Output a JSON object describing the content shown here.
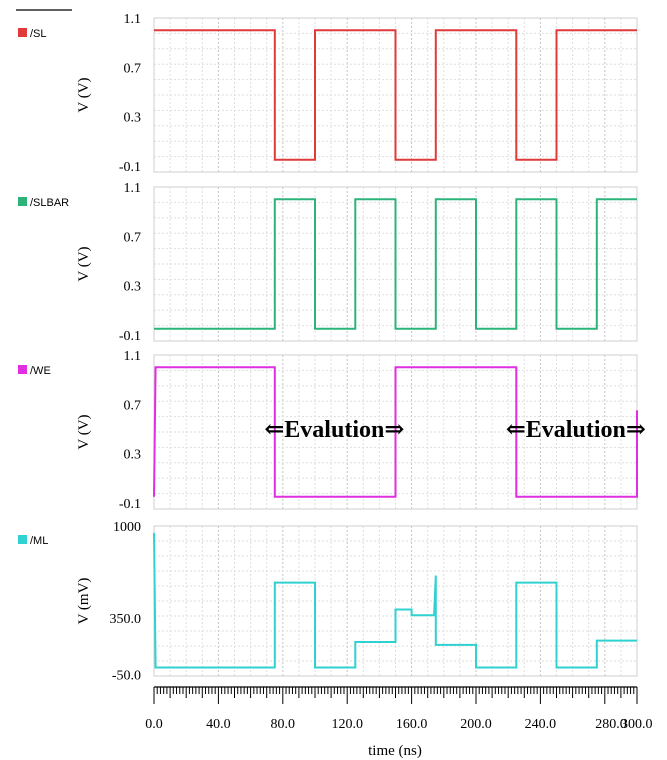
{
  "chart_data": {
    "type": "line",
    "xlabel": "time (ns)",
    "xlim": [
      0,
      300
    ],
    "x_ticks": [
      "0.0",
      "40.0",
      "80.0",
      "120.0",
      "160.0",
      "200.0",
      "240.0",
      "280.0",
      "300.0"
    ],
    "grid": true,
    "panels": [
      {
        "name": "/SL",
        "color": "#e03a3a",
        "ylabel": "V (V)",
        "ylim": [
          -0.15,
          1.1
        ],
        "y_ticks": [
          "1.1",
          "0.7",
          "0.3",
          "-0.1"
        ],
        "points": [
          [
            0,
            1.0
          ],
          [
            75,
            1.0
          ],
          [
            75,
            -0.05
          ],
          [
            100,
            -0.05
          ],
          [
            100,
            1.0
          ],
          [
            150,
            1.0
          ],
          [
            150,
            -0.05
          ],
          [
            175,
            -0.05
          ],
          [
            175,
            1.0
          ],
          [
            225,
            1.0
          ],
          [
            225,
            -0.05
          ],
          [
            250,
            -0.05
          ],
          [
            250,
            1.0
          ],
          [
            300,
            1.0
          ]
        ]
      },
      {
        "name": "/SLBAR",
        "color": "#2db37a",
        "ylabel": "V (V)",
        "ylim": [
          -0.15,
          1.1
        ],
        "y_ticks": [
          "1.1",
          "0.7",
          "0.3",
          "-0.1"
        ],
        "points": [
          [
            0,
            -0.05
          ],
          [
            75,
            -0.05
          ],
          [
            75,
            1.0
          ],
          [
            100,
            1.0
          ],
          [
            100,
            -0.05
          ],
          [
            125,
            -0.05
          ],
          [
            125,
            1.0
          ],
          [
            150,
            1.0
          ],
          [
            150,
            -0.05
          ],
          [
            175,
            -0.05
          ],
          [
            175,
            1.0
          ],
          [
            200,
            1.0
          ],
          [
            200,
            -0.05
          ],
          [
            225,
            -0.05
          ],
          [
            225,
            1.0
          ],
          [
            250,
            1.0
          ],
          [
            250,
            -0.05
          ],
          [
            275,
            -0.05
          ],
          [
            275,
            1.0
          ],
          [
            300,
            1.0
          ]
        ]
      },
      {
        "name": "/WE",
        "color": "#e02ee0",
        "ylabel": "V (V)",
        "ylim": [
          -0.15,
          1.1
        ],
        "y_ticks": [
          "1.1",
          "0.7",
          "0.3",
          "-0.1"
        ],
        "points": [
          [
            0,
            -0.05
          ],
          [
            1,
            1.0
          ],
          [
            75,
            1.0
          ],
          [
            75,
            -0.05
          ],
          [
            150,
            -0.05
          ],
          [
            150,
            1.0
          ],
          [
            225,
            1.0
          ],
          [
            225,
            -0.05
          ],
          [
            300,
            -0.05
          ],
          [
            300,
            0.65
          ]
        ],
        "annotations": [
          {
            "text": "⇐Evalution⇒",
            "x": 112,
            "y": 0.5
          },
          {
            "text": "⇐Evalution⇒",
            "x": 262,
            "y": 0.5
          }
        ]
      },
      {
        "name": "/ML",
        "color": "#2fd1d1",
        "ylabel": "V (mV)",
        "ylim": [
          -60,
          1000
        ],
        "y_ticks": [
          "1000",
          "350.0",
          "-50.0"
        ],
        "points": [
          [
            0,
            950
          ],
          [
            1,
            0
          ],
          [
            75,
            0
          ],
          [
            75,
            600
          ],
          [
            100,
            600
          ],
          [
            100,
            0
          ],
          [
            125,
            0
          ],
          [
            125,
            180
          ],
          [
            150,
            180
          ],
          [
            150,
            410
          ],
          [
            160,
            410
          ],
          [
            160,
            370
          ],
          [
            174,
            370
          ],
          [
            175,
            650
          ],
          [
            175,
            160
          ],
          [
            200,
            160
          ],
          [
            200,
            0
          ],
          [
            225,
            0
          ],
          [
            225,
            600
          ],
          [
            250,
            600
          ],
          [
            250,
            0
          ],
          [
            275,
            0
          ],
          [
            275,
            190
          ],
          [
            300,
            190
          ]
        ]
      }
    ]
  }
}
